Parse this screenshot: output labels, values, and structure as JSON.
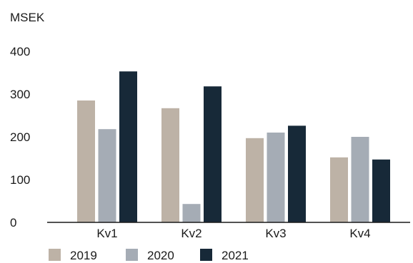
{
  "chart_data": {
    "type": "bar",
    "ylabel": "MSEK",
    "categories": [
      "Kv1",
      "Kv2",
      "Kv3",
      "Kv4"
    ],
    "series": [
      {
        "name": "2019",
        "color": "#bdb2a6",
        "values": [
          285,
          267,
          197,
          152
        ]
      },
      {
        "name": "2020",
        "color": "#a5acb5",
        "values": [
          218,
          43,
          210,
          200
        ]
      },
      {
        "name": "2021",
        "color": "#172938",
        "values": [
          353,
          318,
          226,
          147
        ]
      }
    ],
    "ylim": [
      0,
      400
    ],
    "yticks": [
      0,
      100,
      200,
      300,
      400
    ],
    "grid": false,
    "legend": "bottom-left"
  }
}
